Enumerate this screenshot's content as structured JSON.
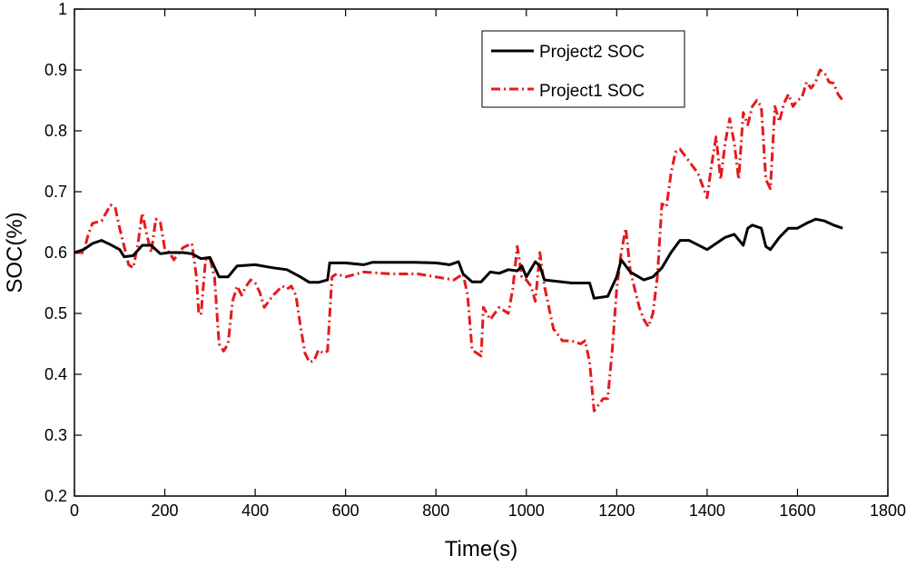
{
  "chart_data": {
    "type": "line",
    "title": "",
    "xlabel": "Time(s)",
    "ylabel": "SOC(%)",
    "xlim": [
      0,
      1800
    ],
    "ylim": [
      0.2,
      1.0
    ],
    "xticks": [
      0,
      200,
      400,
      600,
      800,
      1000,
      1200,
      1400,
      1600,
      1800
    ],
    "yticks": [
      0.2,
      0.3,
      0.4,
      0.5,
      0.6,
      0.7,
      0.8,
      0.9,
      1.0
    ],
    "ytick_labels": [
      "0.2",
      "0.3",
      "0.4",
      "0.5",
      "0.6",
      "0.7",
      "0.8",
      "0.9",
      "1"
    ],
    "grid": false,
    "legend_position": "top-right",
    "series": [
      {
        "name": "Project2 SOC",
        "color": "#000000",
        "style": "solid",
        "x": [
          0,
          20,
          40,
          60,
          80,
          100,
          110,
          130,
          150,
          170,
          190,
          210,
          240,
          260,
          280,
          300,
          320,
          340,
          360,
          400,
          440,
          470,
          500,
          520,
          540,
          560,
          565,
          600,
          640,
          660,
          700,
          750,
          800,
          830,
          850,
          860,
          880,
          900,
          920,
          940,
          960,
          980,
          990,
          1000,
          1020,
          1030,
          1040,
          1100,
          1140,
          1150,
          1180,
          1200,
          1210,
          1230,
          1260,
          1280,
          1300,
          1320,
          1340,
          1360,
          1400,
          1420,
          1440,
          1460,
          1480,
          1490,
          1500,
          1520,
          1530,
          1540,
          1560,
          1580,
          1600,
          1620,
          1640,
          1660,
          1680,
          1700
        ],
        "values": [
          0.6,
          0.605,
          0.615,
          0.62,
          0.613,
          0.605,
          0.593,
          0.595,
          0.612,
          0.612,
          0.598,
          0.6,
          0.6,
          0.598,
          0.59,
          0.592,
          0.56,
          0.56,
          0.578,
          0.58,
          0.575,
          0.572,
          0.56,
          0.551,
          0.551,
          0.555,
          0.583,
          0.583,
          0.58,
          0.584,
          0.584,
          0.584,
          0.583,
          0.58,
          0.585,
          0.565,
          0.552,
          0.552,
          0.568,
          0.566,
          0.572,
          0.57,
          0.578,
          0.56,
          0.585,
          0.578,
          0.555,
          0.55,
          0.55,
          0.525,
          0.528,
          0.56,
          0.588,
          0.568,
          0.555,
          0.56,
          0.575,
          0.6,
          0.62,
          0.62,
          0.605,
          0.615,
          0.625,
          0.63,
          0.612,
          0.64,
          0.645,
          0.64,
          0.61,
          0.605,
          0.625,
          0.64,
          0.64,
          0.648,
          0.655,
          0.652,
          0.645,
          0.64
        ]
      },
      {
        "name": "Project1 SOC",
        "color": "#e41a1c",
        "style": "dashdot",
        "x": [
          0,
          20,
          30,
          40,
          60,
          70,
          80,
          90,
          100,
          110,
          120,
          130,
          140,
          150,
          160,
          170,
          180,
          190,
          200,
          210,
          220,
          240,
          260,
          270,
          275,
          280,
          290,
          300,
          310,
          320,
          330,
          340,
          350,
          360,
          370,
          380,
          390,
          400,
          410,
          420,
          440,
          460,
          470,
          480,
          490,
          500,
          510,
          520,
          530,
          540,
          550,
          560,
          570,
          580,
          600,
          640,
          700,
          760,
          800,
          840,
          860,
          870,
          880,
          900,
          905,
          920,
          940,
          960,
          970,
          980,
          990,
          1000,
          1010,
          1020,
          1030,
          1040,
          1060,
          1080,
          1100,
          1120,
          1130,
          1140,
          1150,
          1160,
          1170,
          1180,
          1190,
          1200,
          1210,
          1220,
          1230,
          1240,
          1250,
          1260,
          1270,
          1280,
          1290,
          1300,
          1310,
          1320,
          1330,
          1340,
          1360,
          1380,
          1400,
          1410,
          1420,
          1430,
          1440,
          1450,
          1460,
          1470,
          1480,
          1490,
          1500,
          1510,
          1520,
          1530,
          1540,
          1550,
          1560,
          1570,
          1580,
          1590,
          1600,
          1610,
          1620,
          1630,
          1640,
          1650,
          1660,
          1670,
          1680,
          1690,
          1700
        ],
        "values": [
          0.6,
          0.6,
          0.628,
          0.648,
          0.652,
          0.665,
          0.678,
          0.675,
          0.64,
          0.61,
          0.58,
          0.575,
          0.612,
          0.665,
          0.63,
          0.6,
          0.655,
          0.65,
          0.605,
          0.6,
          0.588,
          0.608,
          0.615,
          0.56,
          0.5,
          0.498,
          0.588,
          0.59,
          0.56,
          0.45,
          0.438,
          0.45,
          0.52,
          0.545,
          0.53,
          0.545,
          0.555,
          0.55,
          0.535,
          0.51,
          0.53,
          0.545,
          0.54,
          0.545,
          0.53,
          0.48,
          0.435,
          0.42,
          0.422,
          0.44,
          0.435,
          0.438,
          0.56,
          0.565,
          0.56,
          0.568,
          0.565,
          0.565,
          0.56,
          0.555,
          0.565,
          0.53,
          0.44,
          0.43,
          0.51,
          0.49,
          0.51,
          0.5,
          0.54,
          0.61,
          0.56,
          0.555,
          0.545,
          0.52,
          0.6,
          0.545,
          0.475,
          0.455,
          0.455,
          0.45,
          0.455,
          0.42,
          0.34,
          0.35,
          0.36,
          0.36,
          0.44,
          0.54,
          0.6,
          0.64,
          0.57,
          0.54,
          0.51,
          0.49,
          0.478,
          0.5,
          0.56,
          0.68,
          0.675,
          0.73,
          0.765,
          0.77,
          0.75,
          0.73,
          0.69,
          0.745,
          0.79,
          0.72,
          0.78,
          0.82,
          0.78,
          0.72,
          0.83,
          0.81,
          0.84,
          0.85,
          0.84,
          0.72,
          0.705,
          0.84,
          0.815,
          0.845,
          0.86,
          0.84,
          0.85,
          0.855,
          0.88,
          0.87,
          0.88,
          0.9,
          0.895,
          0.88,
          0.878,
          0.86,
          0.85
        ]
      }
    ]
  }
}
